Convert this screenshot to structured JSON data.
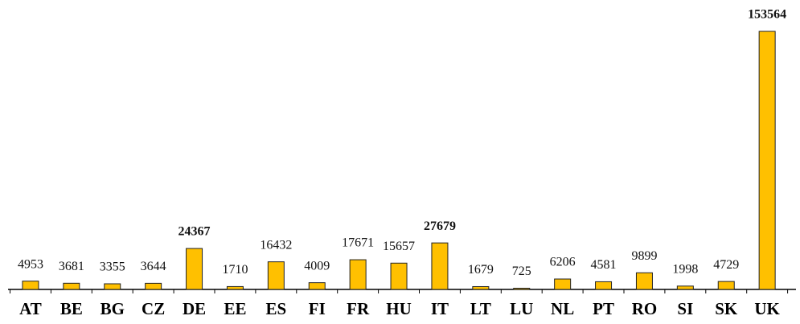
{
  "chart_data": {
    "type": "bar",
    "categories": [
      "AT",
      "BE",
      "BG",
      "CZ",
      "DE",
      "EE",
      "ES",
      "FI",
      "FR",
      "HU",
      "IT",
      "LT",
      "LU",
      "NL",
      "PT",
      "RO",
      "SI",
      "SK",
      "UK"
    ],
    "values": [
      4953,
      3681,
      3355,
      3644,
      24367,
      1710,
      16432,
      4009,
      17671,
      15657,
      27679,
      1679,
      725,
      6206,
      4581,
      9899,
      1998,
      4729,
      153564
    ],
    "color": "#ffc000",
    "bold_categories": [
      "DE",
      "IT",
      "UK"
    ]
  }
}
